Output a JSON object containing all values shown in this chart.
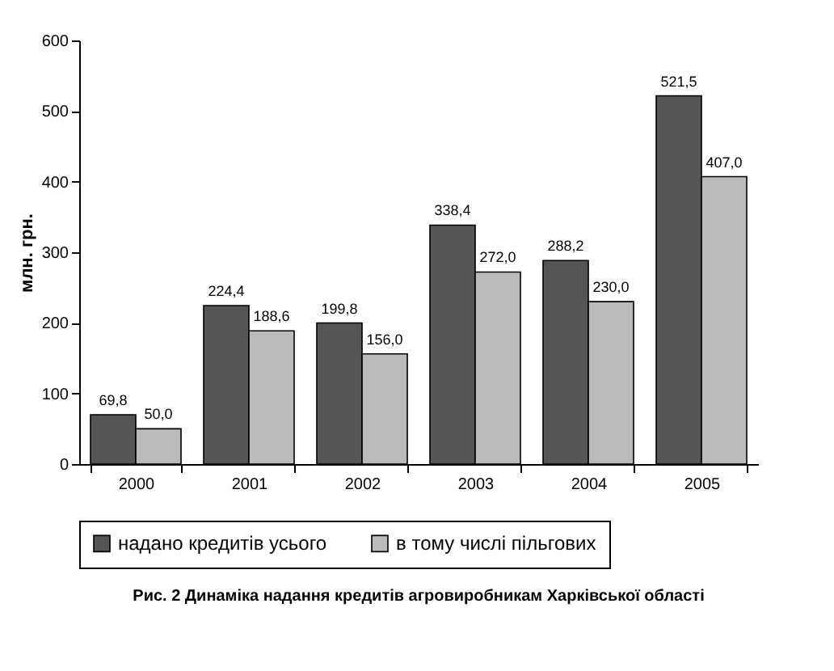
{
  "chart_data": {
    "type": "bar",
    "title": "Рис. 2  Динаміка  надання кредитів агровиробникам Харківської області",
    "ylabel": "млн. грн.",
    "categories": [
      "2000",
      "2001",
      "2002",
      "2003",
      "2004",
      "2005"
    ],
    "series": [
      {
        "name": "надано кредитів усього",
        "color": "#555555",
        "values": [
          69.8,
          224.4,
          199.8,
          338.4,
          288.2,
          521.5
        ],
        "value_labels": [
          "69,8",
          "224,4",
          "199,8",
          "338,4",
          "288,2",
          "521,5"
        ]
      },
      {
        "name": "в тому числі пільгових",
        "color": "#bbbbbb",
        "values": [
          50.0,
          188.6,
          156.0,
          272.0,
          230.0,
          407.0
        ],
        "value_labels": [
          "50,0",
          "188,6",
          "156,0",
          "272,0",
          "230,0",
          "407,0"
        ]
      }
    ],
    "ylim": [
      0,
      600
    ],
    "yticks": [
      0,
      100,
      200,
      300,
      400,
      500,
      600
    ],
    "legend": "bottom"
  }
}
